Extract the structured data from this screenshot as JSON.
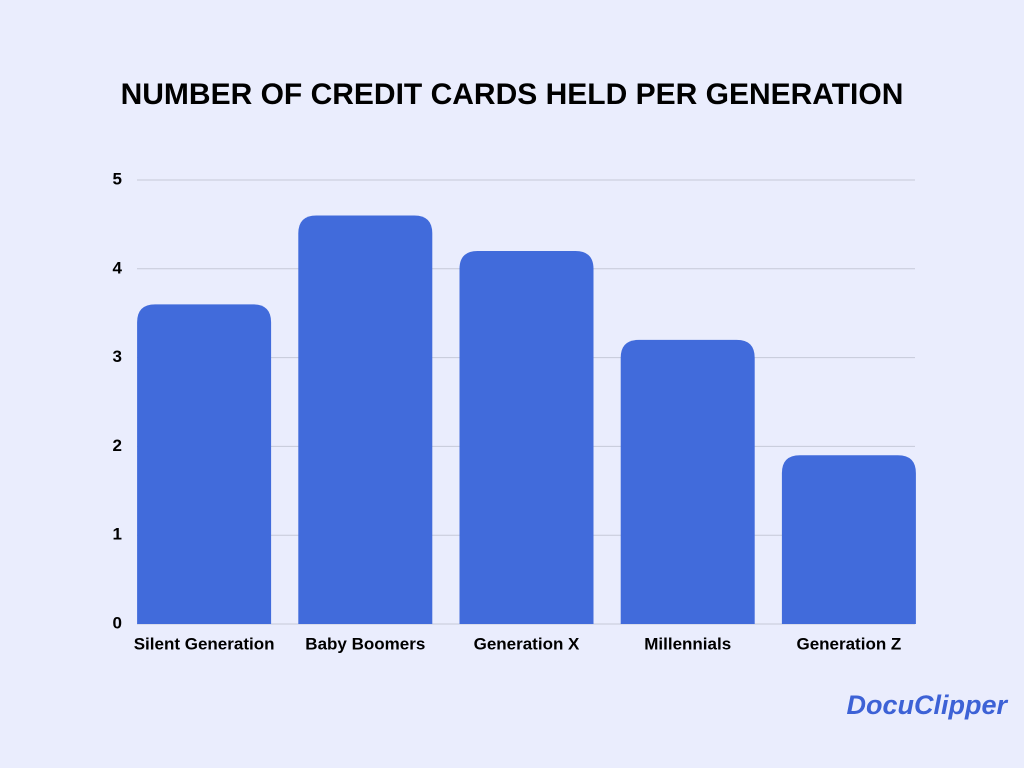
{
  "chart_data": {
    "type": "bar",
    "title": "NUMBER OF CREDIT CARDS HELD PER GENERATION",
    "categories": [
      "Silent Generation",
      "Baby Boomers",
      "Generation X",
      "Millennials",
      "Generation Z"
    ],
    "values": [
      3.6,
      4.6,
      4.2,
      3.2,
      1.9
    ],
    "color": "#416bdb",
    "ylim": [
      0,
      5
    ],
    "yticks": [
      0,
      1,
      2,
      3,
      4,
      5
    ],
    "grid": true
  },
  "watermark": "DocuClipper"
}
